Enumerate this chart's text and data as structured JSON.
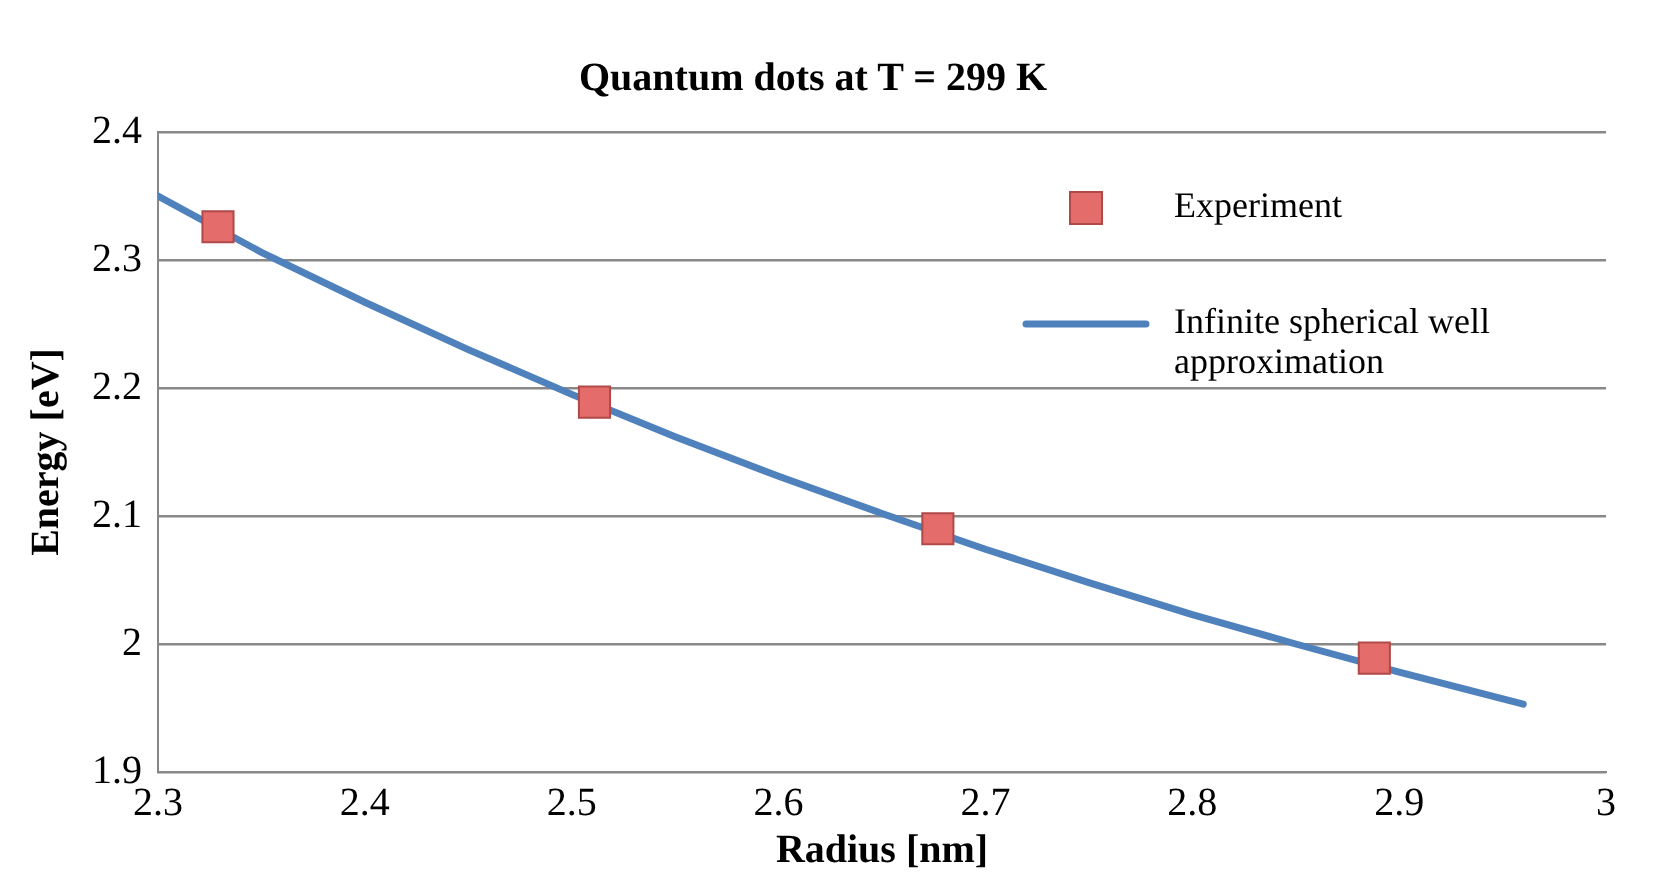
{
  "chart_data": {
    "type": "scatter",
    "title": "Quantum dots at T = 299 K",
    "xlabel": "Radius [nm]",
    "ylabel": "Energy [eV]",
    "xlim": [
      2.3,
      3
    ],
    "xticks": [
      2.3,
      2.4,
      2.5,
      2.6,
      2.7,
      2.8,
      2.9,
      3
    ],
    "ylim": [
      1.9,
      2.4
    ],
    "yticks": [
      1.9,
      2,
      2.1,
      2.2,
      2.3,
      2.4
    ],
    "grid": "y",
    "legend": "top right",
    "series": [
      {
        "name": "Experiment",
        "marker": "square",
        "color": "#e46c6a",
        "x": [
          2.329,
          2.511,
          2.677,
          2.888
        ],
        "values": [
          2.326,
          2.189,
          2.09,
          1.989
        ]
      },
      {
        "name": "Infinite spherical well approximation",
        "type": "line",
        "marker": "none",
        "line_style": "solid",
        "color": "#4f81bd",
        "x": [
          2.3,
          2.35,
          2.4,
          2.45,
          2.5,
          2.55,
          2.6,
          2.65,
          2.7,
          2.75,
          2.8,
          2.85,
          2.9,
          2.96
        ],
        "values": [
          2.35,
          2.306,
          2.267,
          2.23,
          2.195,
          2.162,
          2.131,
          2.102,
          2.074,
          2.048,
          2.023,
          2.0,
          1.978,
          1.953
        ]
      }
    ]
  }
}
